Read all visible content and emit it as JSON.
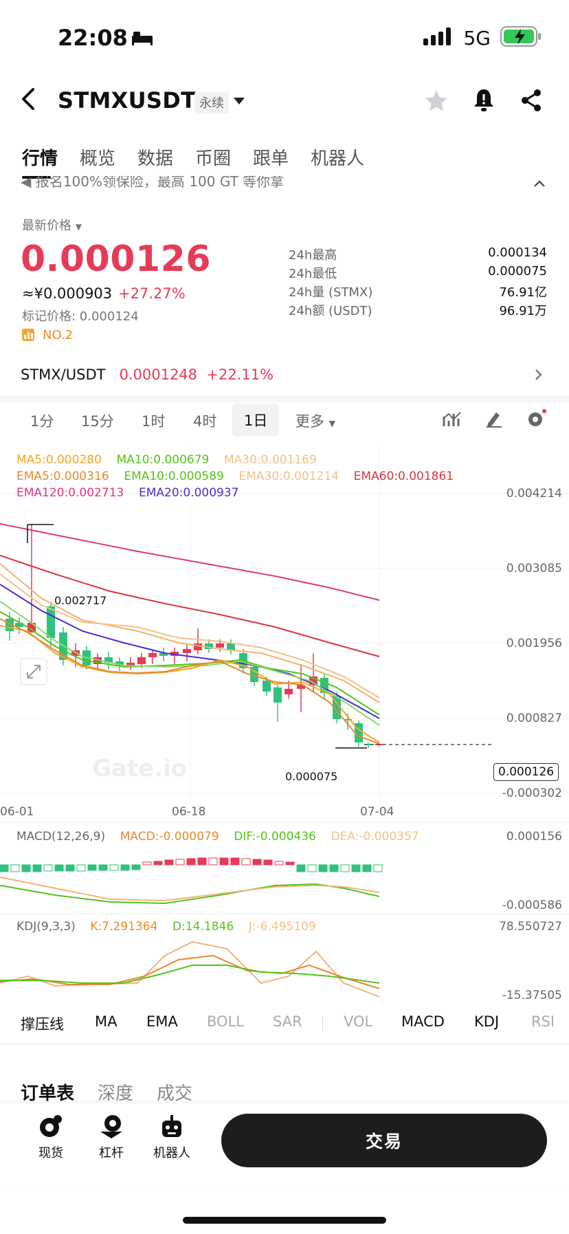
{
  "status": {
    "time": "22:08",
    "network": "5G"
  },
  "header": {
    "pair": "STMXUSDT",
    "tag": "永续"
  },
  "tabs": [
    "行情",
    "概览",
    "数据",
    "币圈",
    "跟单",
    "机器人"
  ],
  "notice": "报名100%领保险，最高 100 GT 等你拿",
  "price": {
    "label": "最新价格",
    "last": "0.000126",
    "cny": "≈¥0.000903",
    "change": "+27.27%",
    "mark": "标记价格: 0.000124",
    "rank": "NO.2"
  },
  "stats": [
    {
      "k": "24h最高",
      "v": "0.000134"
    },
    {
      "k": "24h最低",
      "v": "0.000075"
    },
    {
      "k": "24h量 (STMX)",
      "v": "76.91亿"
    },
    {
      "k": "24h额 (USDT)",
      "v": "96.91万"
    }
  ],
  "spot": {
    "pair": "STMX/USDT",
    "price": "0.0001248",
    "change": "+22.11%"
  },
  "timeframes": [
    "1分",
    "15分",
    "1时",
    "4时",
    "1日",
    "更多"
  ],
  "legend": {
    "ma5": "MA5:0.000280",
    "ma10": "MA10:0.000679",
    "ma30": "MA30:0.001169",
    "ema5": "EMA5:0.000316",
    "ema10": "EMA10:0.000589",
    "ema30": "EMA30:0.001214",
    "ema60": "EMA60:0.001861",
    "ema120": "EMA120:0.002713",
    "ema20": "EMA20:0.000937"
  },
  "price_axis": [
    "0.004214",
    "0.003085",
    "0.001956",
    "0.000827",
    "-0.000302"
  ],
  "last_price_tag": "0.000126",
  "annotations": {
    "high": "0.002717",
    "low": "0.000075"
  },
  "watermark": "Gate.io",
  "dates": [
    "06-01",
    "06-18",
    "07-04"
  ],
  "macd": {
    "title": "MACD(12,26,9)",
    "macd": "MACD:-0.000079",
    "dif": "DIF:-0.000436",
    "dea": "DEA:-0.000357",
    "axis_top": "0.000156",
    "axis_bottom": "-0.000586"
  },
  "kdj": {
    "title": "KDJ(9,3,3)",
    "k": "K:7.291364",
    "d": "D:14.1846",
    "j": "J:-6.495109",
    "axis_top": "78.550727",
    "axis_bottom": "-15.37505"
  },
  "indicators": [
    "撑压线",
    "MA",
    "EMA",
    "BOLL",
    "SAR",
    "VOL",
    "MACD",
    "KDJ",
    "RSI"
  ],
  "book_tabs": [
    "订单表",
    "深度",
    "成交"
  ],
  "bottom_nav": [
    "现货",
    "杠杆",
    "机器人"
  ],
  "trade_button": "交易",
  "colors": {
    "up": "#e63b57",
    "down": "#2ec27e",
    "ma5": "#f5a623",
    "ma10": "#52c41a",
    "ma30": "#f6b26b",
    "ema60": "#d9363e",
    "ema120": "#e0367f",
    "ema20": "#4b2bd1"
  },
  "chart_data": {
    "type": "candlestick",
    "x": [
      "06-01",
      "06-18",
      "07-04"
    ],
    "y_axis_ticks": [
      -0.000302,
      0.000827,
      0.001956,
      0.003085,
      0.004214
    ],
    "last": 0.000126,
    "high_marker": 0.002717,
    "low_marker": 7.5e-05
  }
}
